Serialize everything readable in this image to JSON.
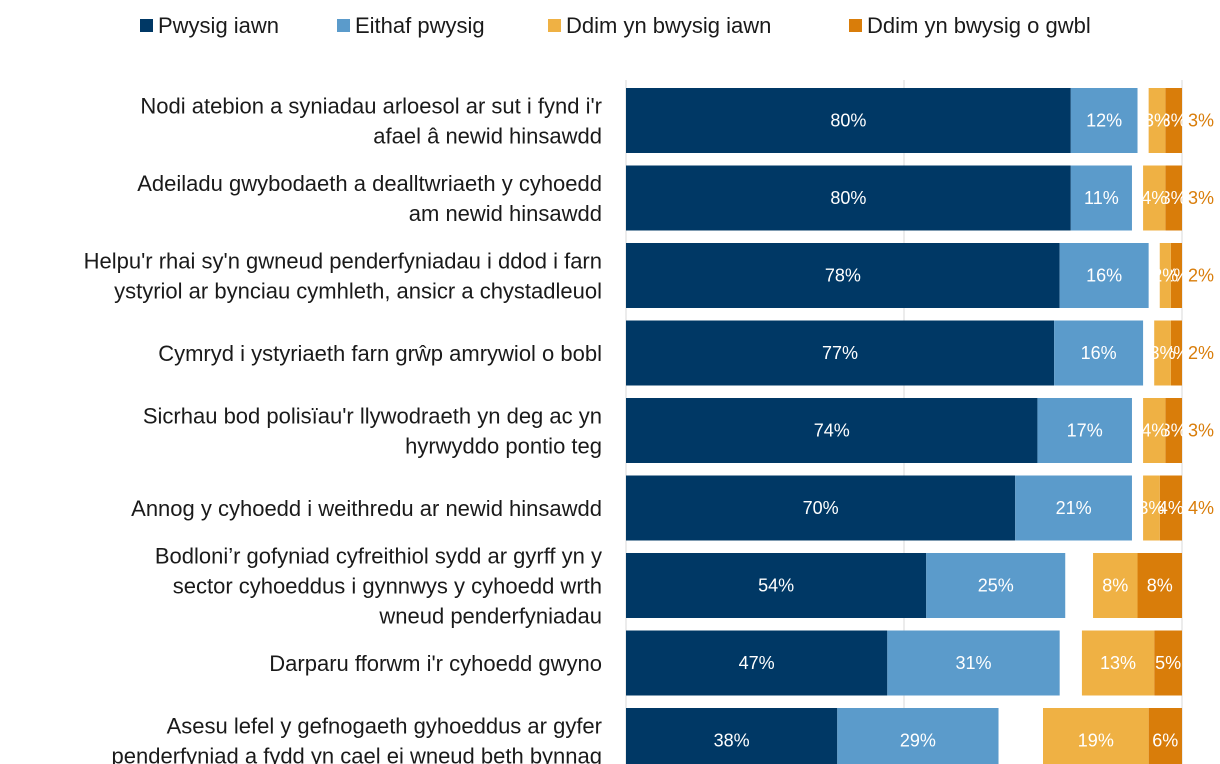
{
  "chart_data": {
    "type": "bar",
    "orientation": "horizontal",
    "stacked": "diverging",
    "title": "",
    "xlabel": "",
    "ylabel": "",
    "grid": true,
    "legend_position": "top",
    "categories": [
      [
        "Nodi atebion a syniadau arloesol ar sut i fynd i'r",
        "afael â newid hinsawdd"
      ],
      [
        "Adeiladu gwybodaeth a dealltwriaeth y cyhoedd",
        "am newid hinsawdd"
      ],
      [
        "Helpu'r rhai sy'n gwneud penderfyniadau i ddod i farn",
        "ystyriol ar bynciau cymhleth, ansicr a chystadleuol"
      ],
      [
        "Cymryd i ystyriaeth farn grŵp amrywiol o bobl"
      ],
      [
        "Sicrhau bod polisïau'r llywodraeth yn deg ac yn",
        "hyrwyddo pontio teg"
      ],
      [
        "Annog y cyhoedd i weithredu ar newid hinsawdd"
      ],
      [
        "Bodloni’r gofyniad cyfreithiol sydd ar gyrff yn y",
        "sector cyhoeddus i gynnwys y cyhoedd wrth",
        "wneud penderfyniadau"
      ],
      [
        "Darparu fforwm i'r cyhoedd gwyno"
      ],
      [
        "Asesu lefel y gefnogaeth gyhoeddus ar gyfer",
        "penderfyniad a fydd yn cael ei wneud beth bynnag"
      ]
    ],
    "series": [
      {
        "name": "Pwysig iawn",
        "color": "#003865",
        "label_color": "#ffffff",
        "side": "positive",
        "values": [
          80,
          80,
          78,
          77,
          74,
          70,
          54,
          47,
          38
        ],
        "labels": [
          "80%",
          "80%",
          "78%",
          "77%",
          "74%",
          "70%",
          "54%",
          "47%",
          "38%"
        ]
      },
      {
        "name": "Eithaf pwysig",
        "color": "#5b9bcb",
        "label_color": "#ffffff",
        "side": "positive",
        "values": [
          12,
          11,
          16,
          16,
          17,
          21,
          25,
          31,
          29
        ],
        "labels": [
          "12%",
          "11%",
          "16%",
          "16%",
          "17%",
          "21%",
          "25%",
          "31%",
          "29%"
        ]
      },
      {
        "name": "Ddim yn bwysig iawn",
        "color": "#efb144",
        "label_color": "#ffffff",
        "side": "negative",
        "values": [
          3,
          4,
          2,
          3,
          4,
          3,
          8,
          13,
          19
        ],
        "labels": [
          "3%",
          "4%",
          "2%",
          "3%",
          "4%",
          "3%",
          "8%",
          "13%",
          "19%"
        ]
      },
      {
        "name": "Ddim yn bwysig o gwbl",
        "color": "#d97d0a",
        "label_color": "#ffffff",
        "side": "negative",
        "values": [
          3,
          3,
          2,
          2,
          3,
          4,
          8,
          5,
          6
        ],
        "labels": [
          "3%",
          "3%",
          "2%",
          "2%",
          "3%",
          "4%",
          "8%",
          "5%",
          "6%"
        ]
      }
    ],
    "outside_labels": [
      "3%",
      "3%",
      "2%",
      "2%",
      "3%",
      "4%",
      "",
      "",
      ""
    ],
    "outside_label_color": "#d97d0a"
  }
}
